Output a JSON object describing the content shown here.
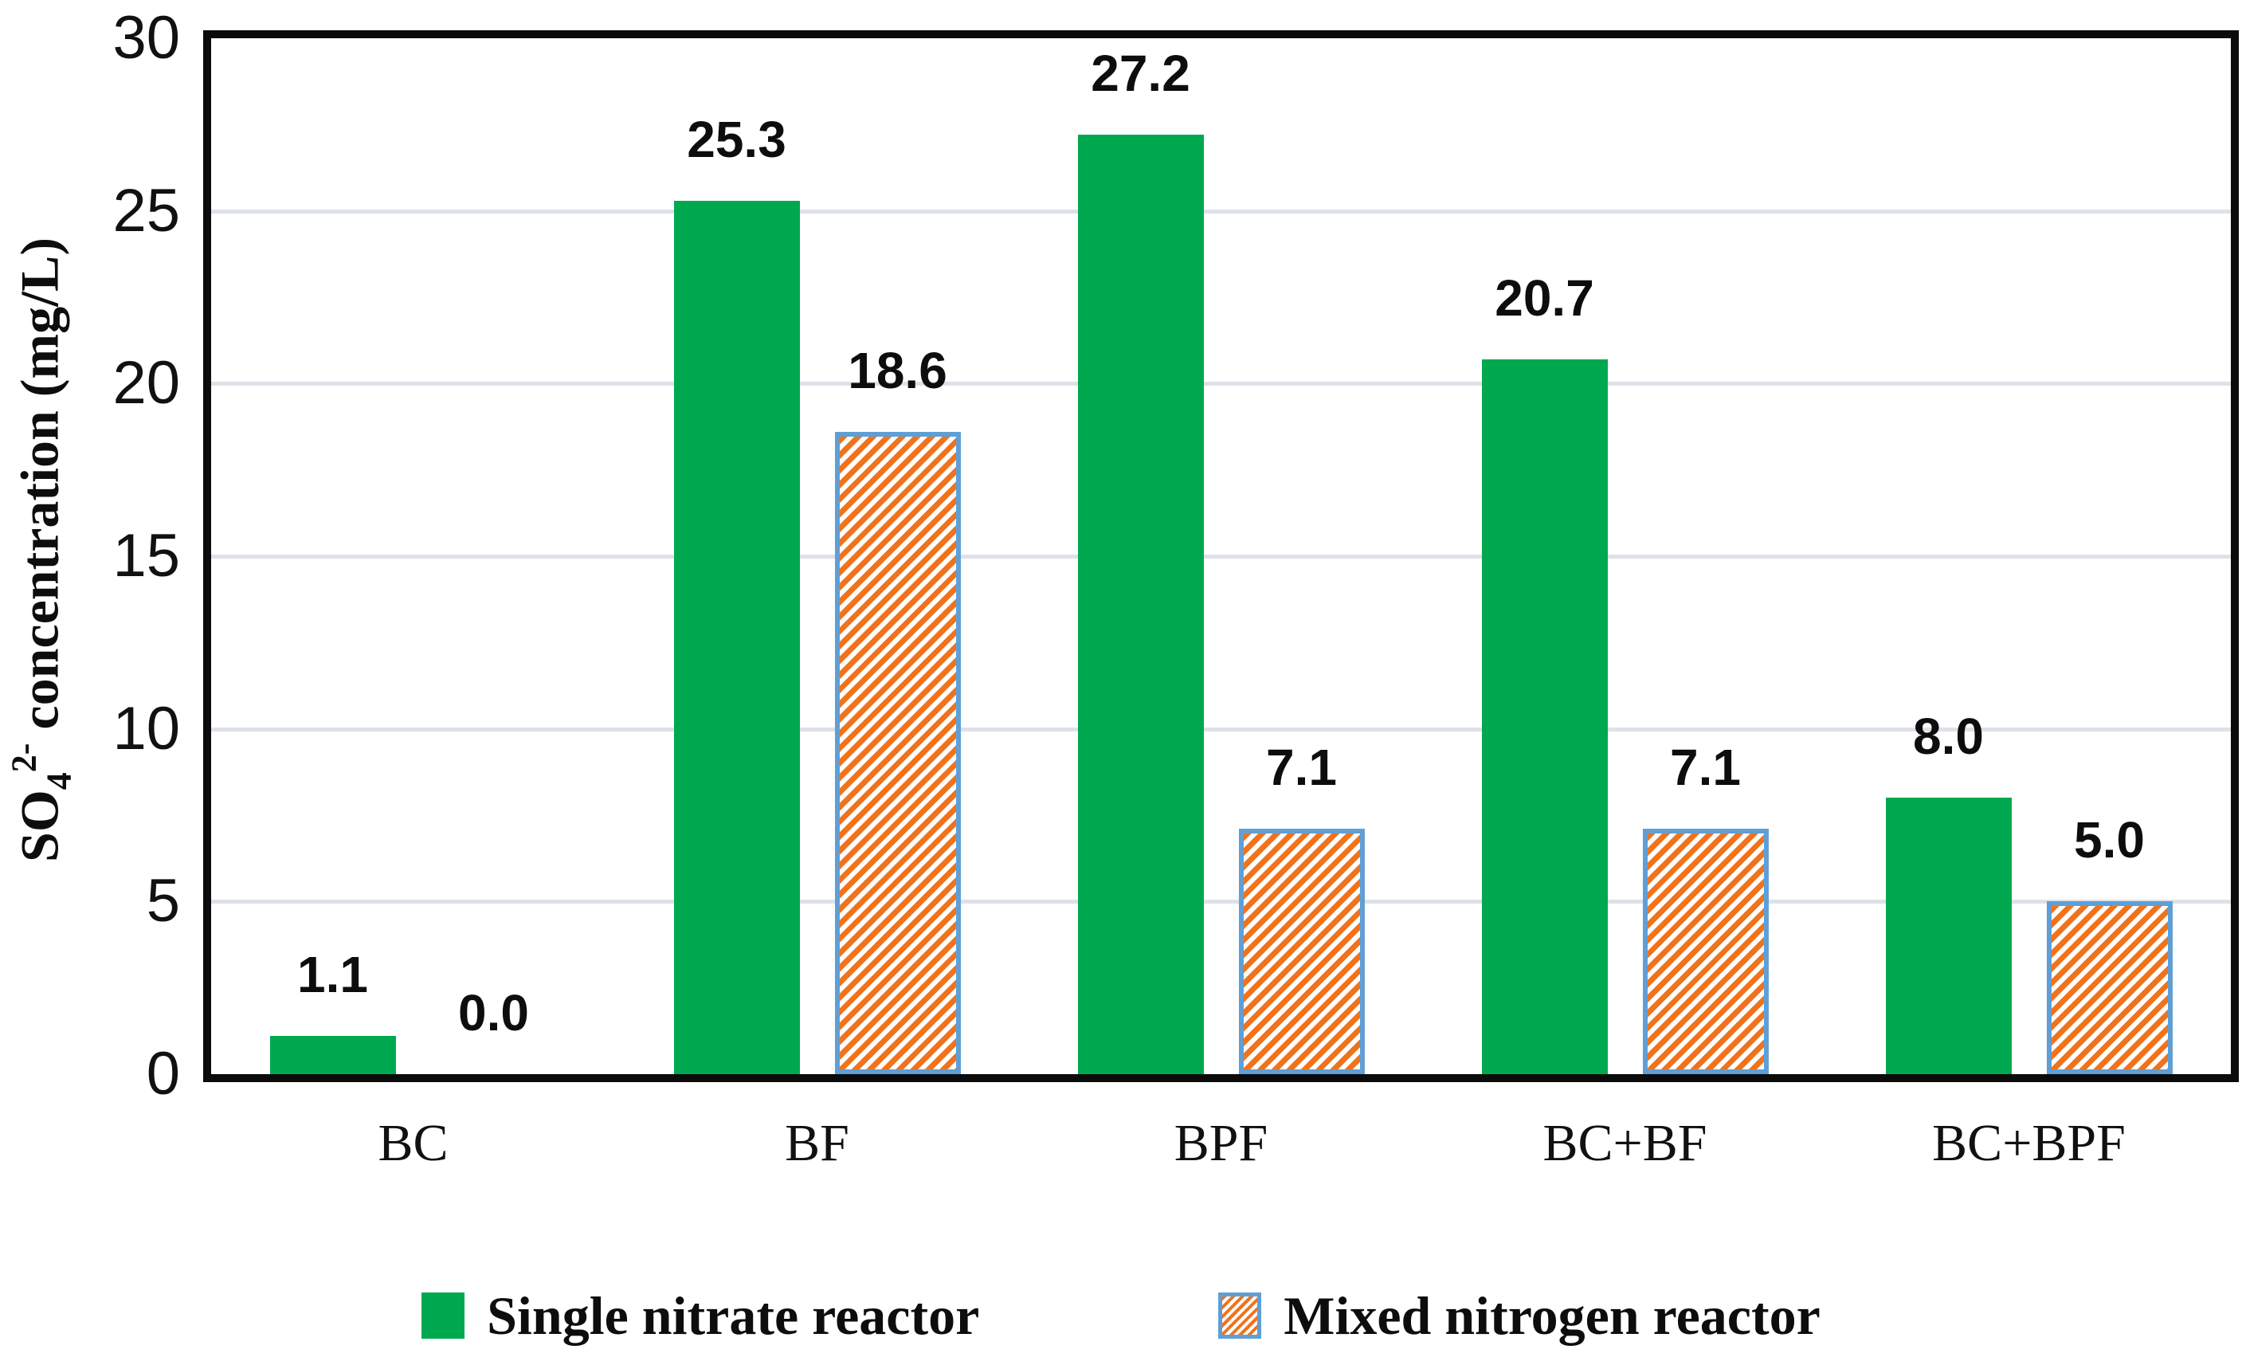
{
  "chart_data": {
    "type": "bar",
    "title": "",
    "categories": [
      "BC",
      "BF",
      "BPF",
      "BC+BF",
      "BC+BPF"
    ],
    "series": [
      {
        "name": "Single nitrate reactor",
        "values": [
          1.1,
          25.3,
          27.2,
          20.7,
          8.0
        ],
        "labels": [
          "1.1",
          "25.3",
          "27.2",
          "20.7",
          "8.0"
        ],
        "color": "#00a84f",
        "fill_style": "solid"
      },
      {
        "name": "Mixed nitrogen reactor",
        "values": [
          0.0,
          18.6,
          7.1,
          7.1,
          5.0
        ],
        "labels": [
          "0.0",
          "18.6",
          "7.1",
          "7.1",
          "5.0"
        ],
        "color": "#f0731c",
        "fill_style": "hatched-upward-diagonal",
        "hatch_background": "#ffffff",
        "border_color": "#5f9fd6"
      }
    ],
    "ylabel": {
      "prefix": "SO",
      "sub": "4",
      "sup": "2-",
      "rest": " concentration (mg/L)"
    },
    "xlabel": "",
    "ylim": [
      0,
      30
    ],
    "yticks": [
      0,
      5,
      10,
      15,
      20,
      25,
      30
    ],
    "grid": true,
    "gridline_color": "#dde1e9",
    "axis_frame_color": "#0b0b0b",
    "legend_position": "bottom-center",
    "data_label_color": "#0d0d0d"
  }
}
